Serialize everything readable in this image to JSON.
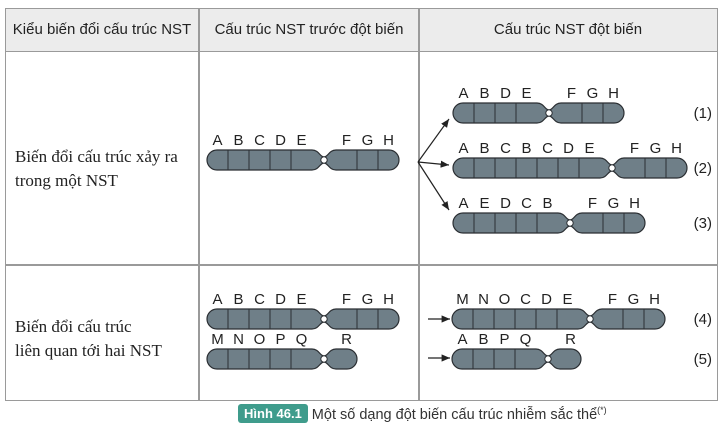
{
  "table": {
    "headers": [
      "Kiểu biến đổi cấu trúc NST",
      "Cấu trúc NST trước đột biến",
      "Cấu trúc NST đột biến"
    ],
    "rows": [
      {
        "label_line1": "Biến đổi cấu trúc xảy ra",
        "label_line2": "trong một NST"
      },
      {
        "label_line1": "Biến đổi cấu trúc",
        "label_line2": "liên quan tới hai NST"
      }
    ]
  },
  "chromosomes": {
    "row1_before": {
      "left": [
        "A",
        "B",
        "C",
        "D",
        "E"
      ],
      "right": [
        "F",
        "G",
        "H"
      ]
    },
    "mut1": {
      "tag": "(1)",
      "left": [
        "A",
        "B",
        "D",
        "E"
      ],
      "right": [
        "F",
        "G",
        "H"
      ]
    },
    "mut2": {
      "tag": "(2)",
      "left": [
        "A",
        "B",
        "C",
        "B",
        "C",
        "D",
        "E"
      ],
      "right": [
        "F",
        "G",
        "H"
      ]
    },
    "mut3": {
      "tag": "(3)",
      "left": [
        "A",
        "E",
        "D",
        "C",
        "B"
      ],
      "right": [
        "F",
        "G",
        "H"
      ]
    },
    "row2_before_a": {
      "left": [
        "A",
        "B",
        "C",
        "D",
        "E"
      ],
      "right": [
        "F",
        "G",
        "H"
      ]
    },
    "row2_before_b": {
      "left": [
        "M",
        "N",
        "O",
        "P",
        "Q"
      ],
      "right": [
        "R"
      ]
    },
    "mut4": {
      "tag": "(4)",
      "left": [
        "M",
        "N",
        "O",
        "C",
        "D",
        "E"
      ],
      "right": [
        "F",
        "G",
        "H"
      ]
    },
    "mut5": {
      "tag": "(5)",
      "left": [
        "A",
        "B",
        "P",
        "Q"
      ],
      "right": [
        "R"
      ]
    }
  },
  "colors": {
    "chromosome_fill": "#6f7f88",
    "chromosome_stroke": "#2b2f33",
    "badge": "#3f9c8c"
  },
  "caption": {
    "badge": "Hình 46.1",
    "text": "Một số dạng đột biến cấu trúc nhiễm sắc thể",
    "sup": "(*)"
  }
}
